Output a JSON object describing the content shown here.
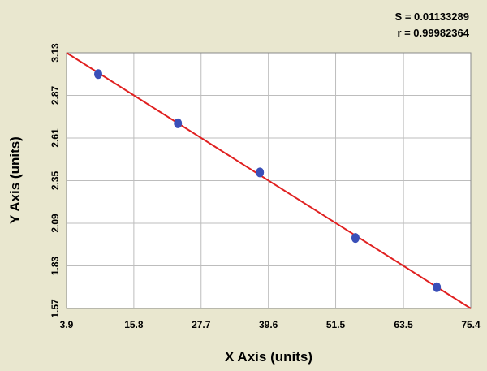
{
  "chart_data": {
    "type": "scatter",
    "annotations": [
      "S = 0.01133289",
      "r = 0.99982364"
    ],
    "x_label": "X Axis (units)",
    "y_label": "Y Axis (units)",
    "x": [
      9.5,
      23.6,
      38.1,
      55.0,
      69.4
    ],
    "series": [
      {
        "color": "#3a4fb8",
        "values": [
          3.0,
          2.7,
          2.4,
          2.0,
          1.7
        ]
      }
    ],
    "fit_line": {
      "color": "#e02020",
      "x": [
        3.9,
        75.4
      ],
      "y": [
        3.13,
        1.57
      ]
    },
    "xlim": [
      3.9,
      75.4
    ],
    "xticks": [
      3.9,
      15.8,
      27.7,
      39.6,
      51.5,
      63.5,
      75.4
    ],
    "ylim": [
      1.57,
      3.13
    ],
    "yticks": [
      1.57,
      1.83,
      2.09,
      2.35,
      2.61,
      2.87,
      3.13
    ],
    "grid": true
  }
}
